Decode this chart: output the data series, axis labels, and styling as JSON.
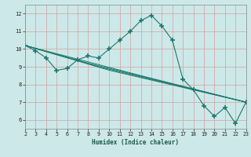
{
  "xlabel": "Humidex (Indice chaleur)",
  "bg_color": "#cde8e8",
  "grid_color": "#b0c8c8",
  "line_color": "#1a7a6e",
  "xlim": [
    2,
    23
  ],
  "ylim": [
    5.5,
    12.5
  ],
  "yticks": [
    6,
    7,
    8,
    9,
    10,
    11,
    12
  ],
  "xticks": [
    2,
    3,
    4,
    5,
    6,
    7,
    8,
    9,
    10,
    11,
    12,
    13,
    14,
    15,
    16,
    17,
    18,
    19,
    20,
    21,
    22,
    23
  ],
  "series": [
    {
      "x": [
        2,
        3,
        4,
        5,
        6,
        7,
        8,
        9,
        10,
        11,
        12,
        13,
        14,
        15,
        16,
        17,
        18,
        19,
        20,
        21,
        22,
        23
      ],
      "y": [
        10.2,
        9.9,
        9.5,
        8.8,
        8.9,
        9.4,
        9.6,
        9.5,
        10.0,
        10.5,
        11.0,
        11.6,
        11.9,
        11.3,
        10.5,
        8.3,
        7.7,
        6.8,
        6.2,
        6.7,
        5.8,
        7.0
      ],
      "marker": "+"
    },
    {
      "x": [
        2,
        8,
        23
      ],
      "y": [
        10.2,
        9.2,
        7.0
      ],
      "marker": null
    },
    {
      "x": [
        2,
        9,
        23
      ],
      "y": [
        10.2,
        9.0,
        7.0
      ],
      "marker": null
    },
    {
      "x": [
        2,
        10,
        23
      ],
      "y": [
        10.2,
        8.8,
        7.0
      ],
      "marker": null
    },
    {
      "x": [
        2,
        13,
        23
      ],
      "y": [
        10.2,
        8.5,
        7.0
      ],
      "marker": null
    }
  ]
}
